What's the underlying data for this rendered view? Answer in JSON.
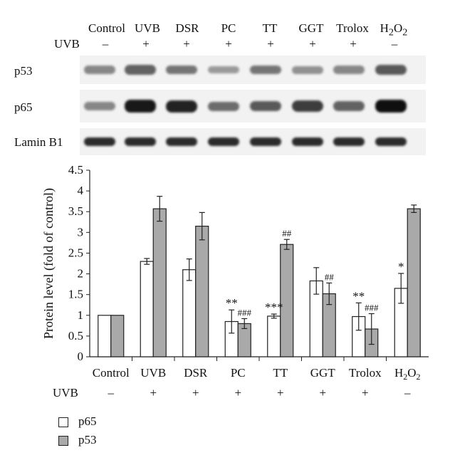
{
  "blot": {
    "lane_labels": [
      "Control",
      "UVB",
      "DSR",
      "PC",
      "TT",
      "GGT",
      "Trolox",
      "H2O2"
    ],
    "uvb_label": "UVB",
    "uvb_signs": [
      "–",
      "+",
      "+",
      "+",
      "+",
      "+",
      "+",
      "–"
    ],
    "rows": [
      {
        "label": "p53",
        "intensity": [
          0.35,
          0.55,
          0.45,
          0.25,
          0.45,
          0.3,
          0.35,
          0.6
        ]
      },
      {
        "label": "p65",
        "intensity": [
          0.35,
          0.95,
          0.9,
          0.5,
          0.6,
          0.75,
          0.55,
          1.0
        ]
      },
      {
        "label": "Lamin B1",
        "intensity": [
          0.85,
          0.85,
          0.85,
          0.85,
          0.85,
          0.85,
          0.85,
          0.85
        ]
      }
    ]
  },
  "chart_data": {
    "type": "bar",
    "categories": [
      "Control",
      "UVB",
      "DSR",
      "PC",
      "TT",
      "GGT",
      "Trolox",
      "H2O2"
    ],
    "uvb_row_label": "UVB",
    "uvb_signs": [
      "–",
      "+",
      "+",
      "+",
      "+",
      "+",
      "+",
      "–"
    ],
    "ylabel": "Protein level (fold of control)",
    "ylim": [
      0,
      4.5
    ],
    "yticks": [
      "0",
      "0.5",
      "1",
      "1.5",
      "2",
      "2.5",
      "3",
      "3.5",
      "4",
      "4.5"
    ],
    "series": [
      {
        "name": "p65",
        "color": "#ffffff",
        "values": [
          1.0,
          2.3,
          2.1,
          0.85,
          0.98,
          1.83,
          0.97,
          1.65
        ],
        "errors": [
          0,
          0.07,
          0.26,
          0.28,
          0.05,
          0.32,
          0.33,
          0.36
        ],
        "annotations": [
          "",
          "",
          "",
          "**",
          "***",
          "",
          "**",
          "*"
        ]
      },
      {
        "name": "p53",
        "color": "#a9a9a9",
        "values": [
          1.0,
          3.57,
          3.15,
          0.8,
          2.71,
          1.52,
          0.67,
          3.57
        ],
        "errors": [
          0,
          0.3,
          0.33,
          0.12,
          0.12,
          0.26,
          0.37,
          0.09
        ],
        "annotations": [
          "",
          "",
          "",
          "###",
          "##",
          "##",
          "###",
          ""
        ]
      }
    ],
    "legend": {
      "position": "bottom-left"
    }
  }
}
